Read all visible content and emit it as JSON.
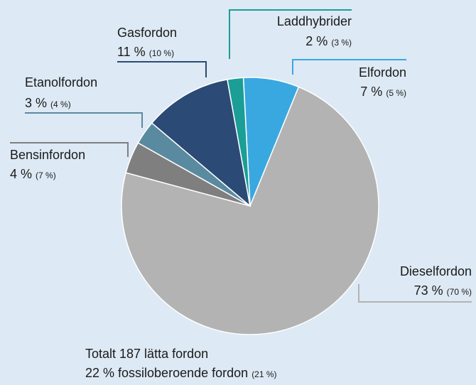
{
  "chart_data": {
    "type": "pie",
    "categories": [
      "Elfordon",
      "Dieselfordon",
      "Bensinfordon",
      "Etanolfordon",
      "Gasfordon",
      "Laddhybrider"
    ],
    "values": [
      7,
      73,
      4,
      3,
      11,
      2
    ],
    "value_labels": [
      "7 %",
      "73 %",
      "4 %",
      "3 %",
      "11 %",
      "2 %"
    ],
    "previous_values": [
      5,
      70,
      7,
      4,
      10,
      3
    ],
    "previous_labels": [
      "(5 %)",
      "(70 %)",
      "(7 %)",
      "(4 %)",
      "(10 %)",
      "(3 %)"
    ],
    "colors": [
      "#3aa8e0",
      "#b3b3b3",
      "#7f7f7f",
      "#5a8aa0",
      "#2b4a75",
      "#1a9e96"
    ],
    "annotations": [
      "Totalt 187 lätta fordon",
      "22 % fossiloberoende fordon",
      "(21 %)"
    ]
  }
}
